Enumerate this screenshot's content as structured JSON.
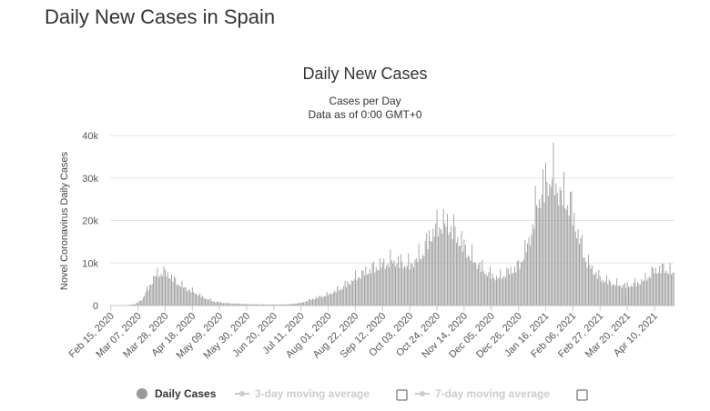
{
  "page": {
    "title": "Daily New Cases in Spain"
  },
  "chart_data": {
    "type": "bar",
    "title": "Daily New Cases",
    "subtitle_1": "Cases per Day",
    "subtitle_2": "Data as of 0:00 GMT+0",
    "xlabel": "",
    "ylabel": "Novel Coronavirus Daily Cases",
    "ylim": [
      0,
      40000
    ],
    "y_ticks": [
      "0",
      "10k",
      "20k",
      "30k",
      "40k"
    ],
    "x_ticks": [
      "Feb 15, 2020",
      "Mar 07, 2020",
      "Mar 28, 2020",
      "Apr 18, 2020",
      "May 09, 2020",
      "May 30, 2020",
      "Jun 20, 2020",
      "Jul 11, 2020",
      "Aug 01, 2020",
      "Aug 22, 2020",
      "Sep 12, 2020",
      "Oct 03, 2020",
      "Oct 24, 2020",
      "Nov 14, 2020",
      "Dec 05, 2020",
      "Dec 26, 2020",
      "Jan 16, 2021",
      "Feb 06, 2021",
      "Feb 27, 2021",
      "Mar 20, 2021",
      "Apr 10, 2021"
    ],
    "x_start": "2020-02-15",
    "x_end": "2021-04-25",
    "series_color": "#999999",
    "grid": true,
    "legend": "bottom-center",
    "anchors": [
      [
        "2020-02-15",
        0
      ],
      [
        "2020-02-28",
        50
      ],
      [
        "2020-03-05",
        400
      ],
      [
        "2020-03-10",
        1500
      ],
      [
        "2020-03-15",
        4500
      ],
      [
        "2020-03-20",
        7500
      ],
      [
        "2020-03-26",
        8600
      ],
      [
        "2020-03-31",
        7800
      ],
      [
        "2020-04-05",
        6200
      ],
      [
        "2020-04-12",
        4600
      ],
      [
        "2020-04-20",
        3300
      ],
      [
        "2020-04-27",
        2000
      ],
      [
        "2020-05-05",
        1000
      ],
      [
        "2020-05-15",
        600
      ],
      [
        "2020-05-25",
        450
      ],
      [
        "2020-06-05",
        300
      ],
      [
        "2020-06-20",
        250
      ],
      [
        "2020-07-01",
        300
      ],
      [
        "2020-07-11",
        700
      ],
      [
        "2020-07-20",
        1700
      ],
      [
        "2020-08-01",
        2800
      ],
      [
        "2020-08-10",
        4200
      ],
      [
        "2020-08-22",
        7000
      ],
      [
        "2020-09-01",
        9000
      ],
      [
        "2020-09-12",
        10500
      ],
      [
        "2020-09-20",
        11500
      ],
      [
        "2020-10-03",
        10300
      ],
      [
        "2020-10-12",
        13000
      ],
      [
        "2020-10-20",
        18500
      ],
      [
        "2020-10-27",
        21000
      ],
      [
        "2020-11-03",
        20500
      ],
      [
        "2020-11-10",
        17000
      ],
      [
        "2020-11-20",
        12000
      ],
      [
        "2020-12-01",
        8500
      ],
      [
        "2020-12-10",
        7000
      ],
      [
        "2020-12-18",
        8500
      ],
      [
        "2020-12-26",
        10000
      ],
      [
        "2021-01-03",
        16000
      ],
      [
        "2021-01-10",
        27000
      ],
      [
        "2021-01-16",
        31000
      ],
      [
        "2021-01-21",
        33000
      ],
      [
        "2021-01-28",
        28000
      ],
      [
        "2021-02-04",
        26000
      ],
      [
        "2021-02-10",
        18000
      ],
      [
        "2021-02-17",
        11000
      ],
      [
        "2021-02-27",
        7000
      ],
      [
        "2021-03-10",
        5500
      ],
      [
        "2021-03-20",
        5000
      ],
      [
        "2021-04-01",
        6200
      ],
      [
        "2021-04-10",
        9000
      ],
      [
        "2021-04-18",
        9500
      ],
      [
        "2021-04-25",
        8000
      ]
    ]
  },
  "legend": {
    "daily_cases_label": "Daily Cases",
    "ma3_label": "3-day moving average",
    "ma7_label": "7-day moving average",
    "daily_color": "#999999",
    "inactive_color": "#cccccc"
  }
}
